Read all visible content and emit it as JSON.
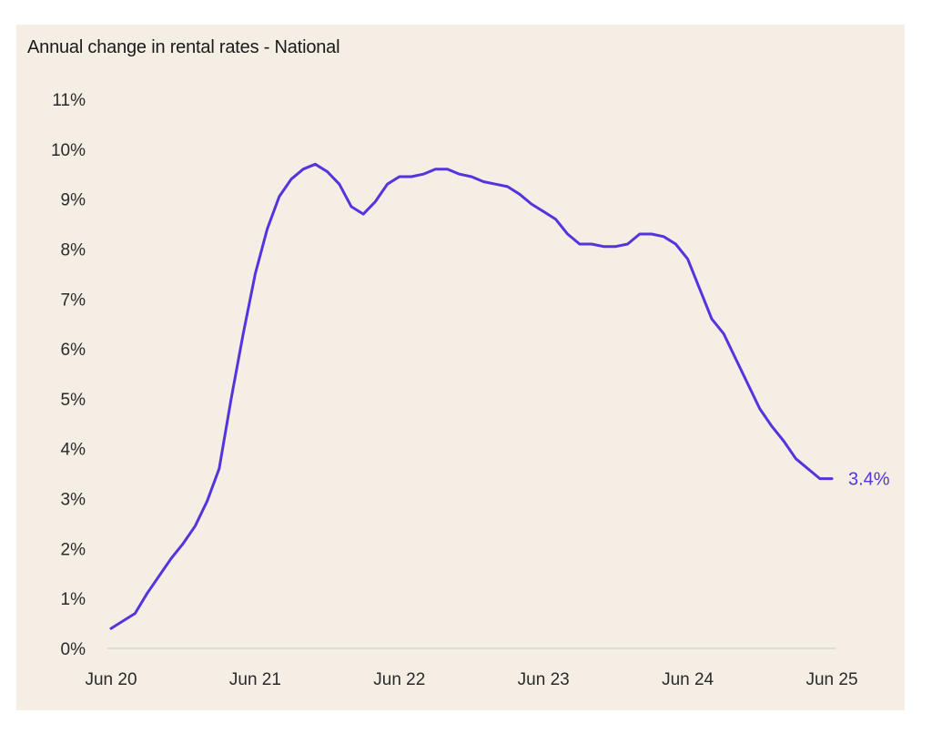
{
  "chart_data": {
    "type": "line",
    "title": "Annual change in rental rates - National",
    "xlabel": "",
    "ylabel": "",
    "x_ticks": [
      "Jun 20",
      "Jun 21",
      "Jun 22",
      "Jun 23",
      "Jun 24",
      "Jun 25"
    ],
    "y_ticks": [
      "0%",
      "1%",
      "2%",
      "3%",
      "4%",
      "5%",
      "6%",
      "7%",
      "8%",
      "9%",
      "10%",
      "11%"
    ],
    "ylim": [
      0,
      11
    ],
    "xlim": [
      "2020-06",
      "2025-06"
    ],
    "grid": false,
    "line_color": "#5533dd",
    "end_label": "3.4%",
    "series": [
      {
        "x": [
          "2020-06",
          "2020-07",
          "2020-08",
          "2020-09",
          "2020-10",
          "2020-11",
          "2020-12",
          "2021-01",
          "2021-02",
          "2021-03",
          "2021-04",
          "2021-05",
          "2021-06",
          "2021-07",
          "2021-08",
          "2021-09",
          "2021-10",
          "2021-11",
          "2021-12",
          "2022-01",
          "2022-02",
          "2022-03",
          "2022-04",
          "2022-05",
          "2022-06",
          "2022-07",
          "2022-08",
          "2022-09",
          "2022-10",
          "2022-11",
          "2022-12",
          "2023-01",
          "2023-02",
          "2023-03",
          "2023-04",
          "2023-05",
          "2023-06",
          "2023-07",
          "2023-08",
          "2023-09",
          "2023-10",
          "2023-11",
          "2023-12",
          "2024-01",
          "2024-02",
          "2024-03",
          "2024-04",
          "2024-05",
          "2024-06",
          "2024-07",
          "2024-08",
          "2024-09",
          "2024-10",
          "2024-11",
          "2024-12",
          "2025-01",
          "2025-02",
          "2025-03",
          "2025-04",
          "2025-05",
          "2025-06"
        ],
        "values": [
          0.4,
          0.55,
          0.7,
          1.1,
          1.45,
          1.8,
          2.1,
          2.45,
          2.95,
          3.6,
          5.0,
          6.3,
          7.5,
          8.4,
          9.05,
          9.4,
          9.6,
          9.7,
          9.55,
          9.3,
          8.85,
          8.7,
          8.95,
          9.3,
          9.45,
          9.45,
          9.5,
          9.6,
          9.6,
          9.5,
          9.45,
          9.35,
          9.3,
          9.25,
          9.1,
          8.9,
          8.75,
          8.6,
          8.3,
          8.1,
          8.1,
          8.05,
          8.05,
          8.1,
          8.3,
          8.3,
          8.25,
          8.1,
          7.8,
          7.2,
          6.6,
          6.3,
          5.8,
          5.3,
          4.8,
          4.45,
          4.15,
          3.8,
          3.6,
          3.4,
          3.4
        ]
      }
    ]
  }
}
